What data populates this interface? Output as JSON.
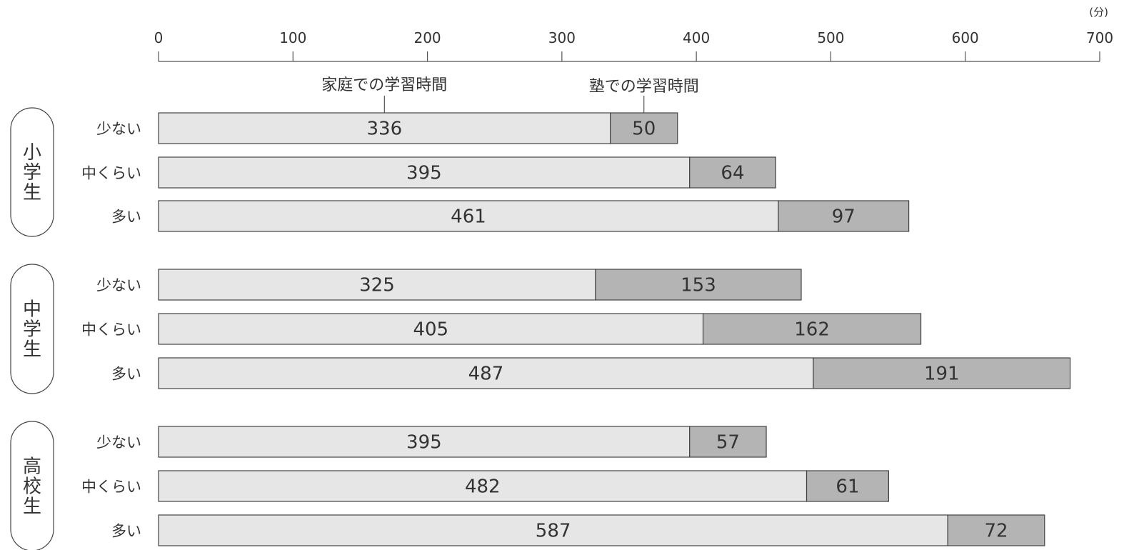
{
  "chart_data": {
    "type": "bar",
    "orientation": "horizontal",
    "stacked": true,
    "unit": "(分)",
    "xlim": [
      0,
      700
    ],
    "xticks": [
      0,
      100,
      200,
      300,
      400,
      500,
      600,
      700
    ],
    "legend_placement": "top (callouts above first bar)",
    "series": [
      {
        "name": "家庭での学習時間",
        "color": "#e6e6e6"
      },
      {
        "name": "塾での学習時間",
        "color": "#b4b4b4"
      }
    ],
    "groups": [
      {
        "name": "小学生",
        "categories": [
          {
            "label": "少ない",
            "values": [
              336,
              50
            ]
          },
          {
            "label": "中くらい",
            "values": [
              395,
              64
            ]
          },
          {
            "label": "多い",
            "values": [
              461,
              97
            ]
          }
        ]
      },
      {
        "name": "中学生",
        "categories": [
          {
            "label": "少ない",
            "values": [
              325,
              153
            ]
          },
          {
            "label": "中くらい",
            "values": [
              405,
              162
            ]
          },
          {
            "label": "多い",
            "values": [
              487,
              191
            ]
          }
        ]
      },
      {
        "name": "高校生",
        "categories": [
          {
            "label": "少ない",
            "values": [
              395,
              57
            ]
          },
          {
            "label": "中くらい",
            "values": [
              482,
              61
            ]
          },
          {
            "label": "多い",
            "values": [
              587,
              72
            ]
          }
        ]
      }
    ]
  }
}
